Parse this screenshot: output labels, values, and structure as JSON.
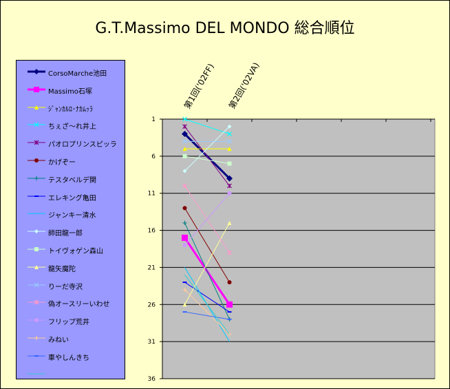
{
  "chart_data": {
    "type": "line",
    "title": "G.T.Massimo DEL MONDO  総合順位",
    "xlabel": "",
    "ylabel": "",
    "categories": [
      "第1回('02FF)",
      "第2回('02VA)"
    ],
    "ylim": [
      1,
      36
    ],
    "y_inverted": true,
    "yticks": [
      1,
      6,
      11,
      16,
      21,
      26,
      31,
      36
    ],
    "grid": true,
    "legend_position": "left",
    "series": [
      {
        "name": "CorsoMarche池田",
        "values": [
          3,
          9
        ],
        "color": "#000080",
        "marker": "diamond"
      },
      {
        "name": "Massimo石塚",
        "values": [
          17,
          26
        ],
        "color": "#ff00ff",
        "marker": "square"
      },
      {
        "name": "ｼﾞｬﾝｶﾙﾛ･ﾅｶﾑｯﾗ",
        "values": [
          5,
          5
        ],
        "color": "#ffff00",
        "marker": "triangle"
      },
      {
        "name": "ちぇざ～れ井上",
        "values": [
          1,
          3
        ],
        "color": "#00ffff",
        "marker": "x"
      },
      {
        "name": "パオロプリンスピッラ",
        "values": [
          2,
          10
        ],
        "color": "#800080",
        "marker": "star"
      },
      {
        "name": "かげぞー",
        "values": [
          13,
          23
        ],
        "color": "#800000",
        "marker": "circle"
      },
      {
        "name": "テスタベルデ関",
        "values": [
          15,
          28
        ],
        "color": "#008080",
        "marker": "plus"
      },
      {
        "name": "エレキング亀田",
        "values": [
          23,
          27
        ],
        "color": "#0000ff",
        "marker": "dash"
      },
      {
        "name": "ジャンキー清水",
        "values": [
          21,
          31
        ],
        "color": "#00ccff",
        "marker": "none"
      },
      {
        "name": "師田龍一郎",
        "values": [
          8,
          2
        ],
        "color": "#ccffff",
        "marker": "diamond"
      },
      {
        "name": "トイヴォゲン森山",
        "values": [
          6,
          7
        ],
        "color": "#ccffcc",
        "marker": "square"
      },
      {
        "name": "龍矢魔陀",
        "values": [
          26,
          15
        ],
        "color": "#ffff99",
        "marker": "triangle"
      },
      {
        "name": "りーだ寺沢",
        "values": [
          4,
          4
        ],
        "color": "#99ccff",
        "marker": "x"
      },
      {
        "name": "偽オースリーいわせ",
        "values": [
          10,
          19
        ],
        "color": "#ff99cc",
        "marker": "star"
      },
      {
        "name": "フリップ荒井",
        "values": [
          18,
          11
        ],
        "color": "#cc99ff",
        "marker": "circle"
      },
      {
        "name": "みねい",
        "values": [
          24,
          30
        ],
        "color": "#ffcc99",
        "marker": "plus"
      },
      {
        "name": "車やしんきち",
        "values": [
          27,
          28
        ],
        "color": "#3366ff",
        "marker": "dash"
      },
      {
        "name": "",
        "values": [
          22,
          30
        ],
        "color": "#33cccc",
        "marker": "none"
      }
    ],
    "colors": {
      "background": "#ffffcc",
      "plot_area": "#c0c0c0",
      "legend_bg": "#9999ff"
    }
  }
}
